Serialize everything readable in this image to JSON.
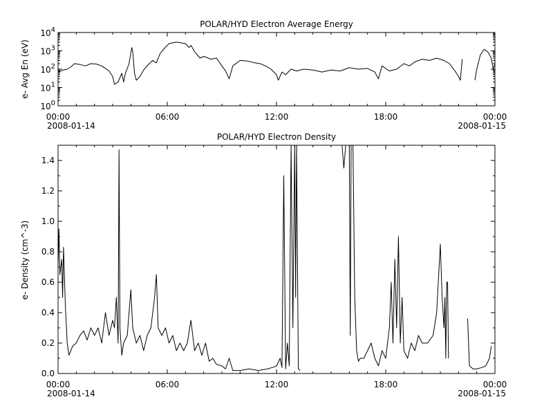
{
  "chart_data": [
    {
      "type": "line",
      "title": "POLAR/HYD  Electron Average Energy",
      "ylabel": "e- Avg En (eV)",
      "yscale": "log",
      "ylim": [
        1,
        10000
      ],
      "xlim_hours": [
        0,
        24
      ],
      "x_tick_labels": [
        {
          "hour": 0,
          "time": "00:00",
          "date": "2008-01-14"
        },
        {
          "hour": 6,
          "time": "06:00",
          "date": ""
        },
        {
          "hour": 12,
          "time": "12:00",
          "date": ""
        },
        {
          "hour": 18,
          "time": "18:00",
          "date": ""
        },
        {
          "hour": 24,
          "time": "00:00",
          "date": "2008-01-15"
        }
      ],
      "y_ticks": [
        {
          "value": 1,
          "base": "10",
          "exp": "0"
        },
        {
          "value": 10,
          "base": "10",
          "exp": "1"
        },
        {
          "value": 100,
          "base": "10",
          "exp": "2"
        },
        {
          "value": 1000,
          "base": "10",
          "exp": "3"
        },
        {
          "value": 10000,
          "base": "10",
          "exp": "4"
        }
      ],
      "series": [
        {
          "segments": [
            [
              [
                0.0,
                70
              ],
              [
                0.3,
                90
              ],
              [
                0.5,
                100
              ],
              [
                0.7,
                130
              ],
              [
                0.9,
                200
              ],
              [
                1.2,
                180
              ],
              [
                1.5,
                150
              ],
              [
                1.8,
                200
              ],
              [
                2.1,
                190
              ],
              [
                2.4,
                150
              ],
              [
                2.6,
                110
              ],
              [
                2.8,
                80
              ],
              [
                3.0,
                40
              ],
              [
                3.1,
                15
              ],
              [
                3.3,
                20
              ],
              [
                3.5,
                60
              ],
              [
                3.6,
                20
              ],
              [
                3.7,
                60
              ],
              [
                3.9,
                200
              ],
              [
                4.0,
                800
              ],
              [
                4.05,
                1500
              ],
              [
                4.1,
                900
              ],
              [
                4.2,
                60
              ],
              [
                4.3,
                25
              ],
              [
                4.5,
                40
              ],
              [
                4.7,
                90
              ],
              [
                5.0,
                200
              ],
              [
                5.2,
                300
              ],
              [
                5.4,
                220
              ],
              [
                5.6,
                700
              ],
              [
                5.9,
                1600
              ],
              [
                6.1,
                2500
              ],
              [
                6.5,
                3000
              ],
              [
                6.8,
                2700
              ],
              [
                7.0,
                2500
              ],
              [
                7.2,
                1500
              ],
              [
                7.3,
                2000
              ],
              [
                7.5,
                900
              ],
              [
                7.8,
                400
              ],
              [
                8.0,
                500
              ],
              [
                8.4,
                350
              ],
              [
                8.7,
                400
              ],
              [
                9.0,
                150
              ],
              [
                9.2,
                80
              ],
              [
                9.4,
                30
              ],
              [
                9.6,
                150
              ],
              [
                10.0,
                300
              ],
              [
                10.4,
                280
              ],
              [
                10.8,
                220
              ],
              [
                11.1,
                200
              ],
              [
                11.4,
                150
              ],
              [
                11.7,
                100
              ],
              [
                12.0,
                50
              ],
              [
                12.1,
                25
              ],
              [
                12.3,
                70
              ],
              [
                12.5,
                50
              ],
              [
                12.8,
                100
              ],
              [
                13.1,
                80
              ],
              [
                13.5,
                100
              ],
              [
                14.0,
                90
              ],
              [
                14.5,
                70
              ],
              [
                15.0,
                90
              ],
              [
                15.5,
                80
              ],
              [
                16.0,
                120
              ],
              [
                16.5,
                100
              ],
              [
                17.0,
                110
              ],
              [
                17.4,
                70
              ],
              [
                17.6,
                30
              ],
              [
                17.8,
                150
              ],
              [
                18.2,
                80
              ],
              [
                18.6,
                100
              ],
              [
                19.0,
                200
              ],
              [
                19.3,
                150
              ],
              [
                19.6,
                250
              ],
              [
                20.0,
                350
              ],
              [
                20.4,
                300
              ],
              [
                20.8,
                400
              ],
              [
                21.2,
                300
              ],
              [
                21.5,
                200
              ],
              [
                21.8,
                80
              ],
              [
                22.0,
                40
              ],
              [
                22.1,
                25
              ],
              [
                22.2,
                350
              ]
            ],
            [
              [
                22.9,
                25
              ],
              [
                23.0,
                100
              ],
              [
                23.2,
                600
              ],
              [
                23.4,
                1200
              ],
              [
                23.6,
                900
              ],
              [
                23.8,
                400
              ],
              [
                23.9,
                100
              ],
              [
                24.0,
                200
              ]
            ]
          ]
        }
      ]
    },
    {
      "type": "line",
      "title": "POLAR/HYD  Electron Density",
      "ylabel": "e- Density (cm^-3)",
      "ylim": [
        0.0,
        1.5
      ],
      "xlim_hours": [
        0,
        24
      ],
      "x_tick_labels": [
        {
          "hour": 0,
          "time": "00:00",
          "date": "2008-01-14"
        },
        {
          "hour": 6,
          "time": "06:00",
          "date": ""
        },
        {
          "hour": 12,
          "time": "12:00",
          "date": ""
        },
        {
          "hour": 18,
          "time": "18:00",
          "date": ""
        },
        {
          "hour": 24,
          "time": "00:00",
          "date": "2008-01-15"
        }
      ],
      "y_ticks": [
        {
          "value": 0.0,
          "label": "0.0"
        },
        {
          "value": 0.2,
          "label": "0.2"
        },
        {
          "value": 0.4,
          "label": "0.4"
        },
        {
          "value": 0.6,
          "label": "0.6"
        },
        {
          "value": 0.8,
          "label": "0.8"
        },
        {
          "value": 1.0,
          "label": "1.0"
        },
        {
          "value": 1.2,
          "label": "1.2"
        },
        {
          "value": 1.4,
          "label": "1.4"
        }
      ],
      "series": [
        {
          "segments": [
            [
              [
                0.0,
                0.7
              ],
              [
                0.05,
                0.95
              ],
              [
                0.1,
                0.65
              ],
              [
                0.2,
                0.75
              ],
              [
                0.25,
                0.5
              ],
              [
                0.3,
                0.83
              ],
              [
                0.4,
                0.45
              ],
              [
                0.5,
                0.2
              ],
              [
                0.6,
                0.12
              ],
              [
                0.8,
                0.18
              ],
              [
                1.0,
                0.2
              ],
              [
                1.2,
                0.25
              ],
              [
                1.4,
                0.28
              ],
              [
                1.6,
                0.22
              ],
              [
                1.8,
                0.3
              ],
              [
                2.0,
                0.25
              ],
              [
                2.2,
                0.3
              ],
              [
                2.4,
                0.2
              ],
              [
                2.6,
                0.4
              ],
              [
                2.8,
                0.25
              ],
              [
                3.0,
                0.35
              ],
              [
                3.1,
                0.3
              ],
              [
                3.2,
                0.5
              ],
              [
                3.3,
                0.2
              ],
              [
                3.35,
                1.47
              ],
              [
                3.4,
                0.3
              ],
              [
                3.5,
                0.12
              ],
              [
                3.6,
                0.2
              ],
              [
                3.8,
                0.25
              ],
              [
                4.0,
                0.55
              ],
              [
                4.1,
                0.3
              ],
              [
                4.3,
                0.2
              ],
              [
                4.5,
                0.25
              ],
              [
                4.7,
                0.15
              ],
              [
                4.9,
                0.25
              ],
              [
                5.1,
                0.3
              ],
              [
                5.3,
                0.5
              ],
              [
                5.4,
                0.65
              ],
              [
                5.5,
                0.3
              ],
              [
                5.7,
                0.25
              ],
              [
                5.9,
                0.3
              ],
              [
                6.1,
                0.2
              ],
              [
                6.3,
                0.25
              ],
              [
                6.5,
                0.15
              ],
              [
                6.7,
                0.2
              ],
              [
                6.9,
                0.15
              ],
              [
                7.1,
                0.2
              ],
              [
                7.3,
                0.35
              ],
              [
                7.5,
                0.15
              ],
              [
                7.7,
                0.2
              ],
              [
                7.9,
                0.12
              ],
              [
                8.1,
                0.2
              ],
              [
                8.3,
                0.08
              ],
              [
                8.5,
                0.1
              ],
              [
                8.7,
                0.06
              ],
              [
                9.0,
                0.05
              ],
              [
                9.2,
                0.03
              ],
              [
                9.4,
                0.1
              ],
              [
                9.6,
                0.02
              ],
              [
                10.0,
                0.02
              ],
              [
                10.5,
                0.03
              ],
              [
                11.0,
                0.02
              ],
              [
                11.5,
                0.03
              ],
              [
                11.8,
                0.04
              ],
              [
                12.0,
                0.05
              ],
              [
                12.2,
                0.1
              ],
              [
                12.3,
                0.04
              ],
              [
                12.4,
                1.3
              ],
              [
                12.5,
                0.03
              ],
              [
                12.6,
                0.2
              ],
              [
                12.7,
                0.05
              ],
              [
                12.8,
                1.5
              ],
              [
                12.9,
                0.3
              ],
              [
                13.0,
                1.5
              ],
              [
                13.05,
                0.5
              ],
              [
                13.1,
                1.5
              ],
              [
                13.2,
                0.03
              ],
              [
                13.3,
                0.02
              ]
            ],
            [
              [
                15.6,
                1.5
              ],
              [
                15.7,
                1.35
              ],
              [
                15.8,
                1.5
              ]
            ],
            [
              [
                16.0,
                1.5
              ],
              [
                16.05,
                0.25
              ],
              [
                16.1,
                1.5
              ],
              [
                16.2,
                1.5
              ],
              [
                16.3,
                0.5
              ],
              [
                16.4,
                0.15
              ],
              [
                16.5,
                0.08
              ],
              [
                16.6,
                0.1
              ],
              [
                16.8,
                0.1
              ],
              [
                17.0,
                0.15
              ],
              [
                17.2,
                0.2
              ],
              [
                17.4,
                0.1
              ],
              [
                17.6,
                0.05
              ],
              [
                17.8,
                0.15
              ],
              [
                18.0,
                0.1
              ],
              [
                18.2,
                0.3
              ],
              [
                18.3,
                0.6
              ],
              [
                18.4,
                0.2
              ],
              [
                18.5,
                0.75
              ],
              [
                18.6,
                0.3
              ],
              [
                18.7,
                0.9
              ],
              [
                18.8,
                0.2
              ],
              [
                18.9,
                0.5
              ],
              [
                19.0,
                0.15
              ],
              [
                19.2,
                0.1
              ],
              [
                19.4,
                0.2
              ],
              [
                19.6,
                0.15
              ],
              [
                19.8,
                0.25
              ],
              [
                20.0,
                0.2
              ],
              [
                20.3,
                0.2
              ],
              [
                20.6,
                0.25
              ],
              [
                20.8,
                0.4
              ],
              [
                21.0,
                0.85
              ],
              [
                21.1,
                0.5
              ],
              [
                21.2,
                0.3
              ],
              [
                21.25,
                0.5
              ],
              [
                21.3,
                0.1
              ],
              [
                21.35,
                0.6
              ],
              [
                21.4,
                0.6
              ],
              [
                21.45,
                0.1
              ]
            ],
            [
              [
                22.5,
                0.36
              ],
              [
                22.6,
                0.05
              ],
              [
                22.8,
                0.03
              ],
              [
                23.0,
                0.03
              ],
              [
                23.3,
                0.04
              ],
              [
                23.5,
                0.05
              ],
              [
                23.7,
                0.1
              ],
              [
                23.8,
                0.18
              ]
            ]
          ]
        }
      ]
    }
  ]
}
